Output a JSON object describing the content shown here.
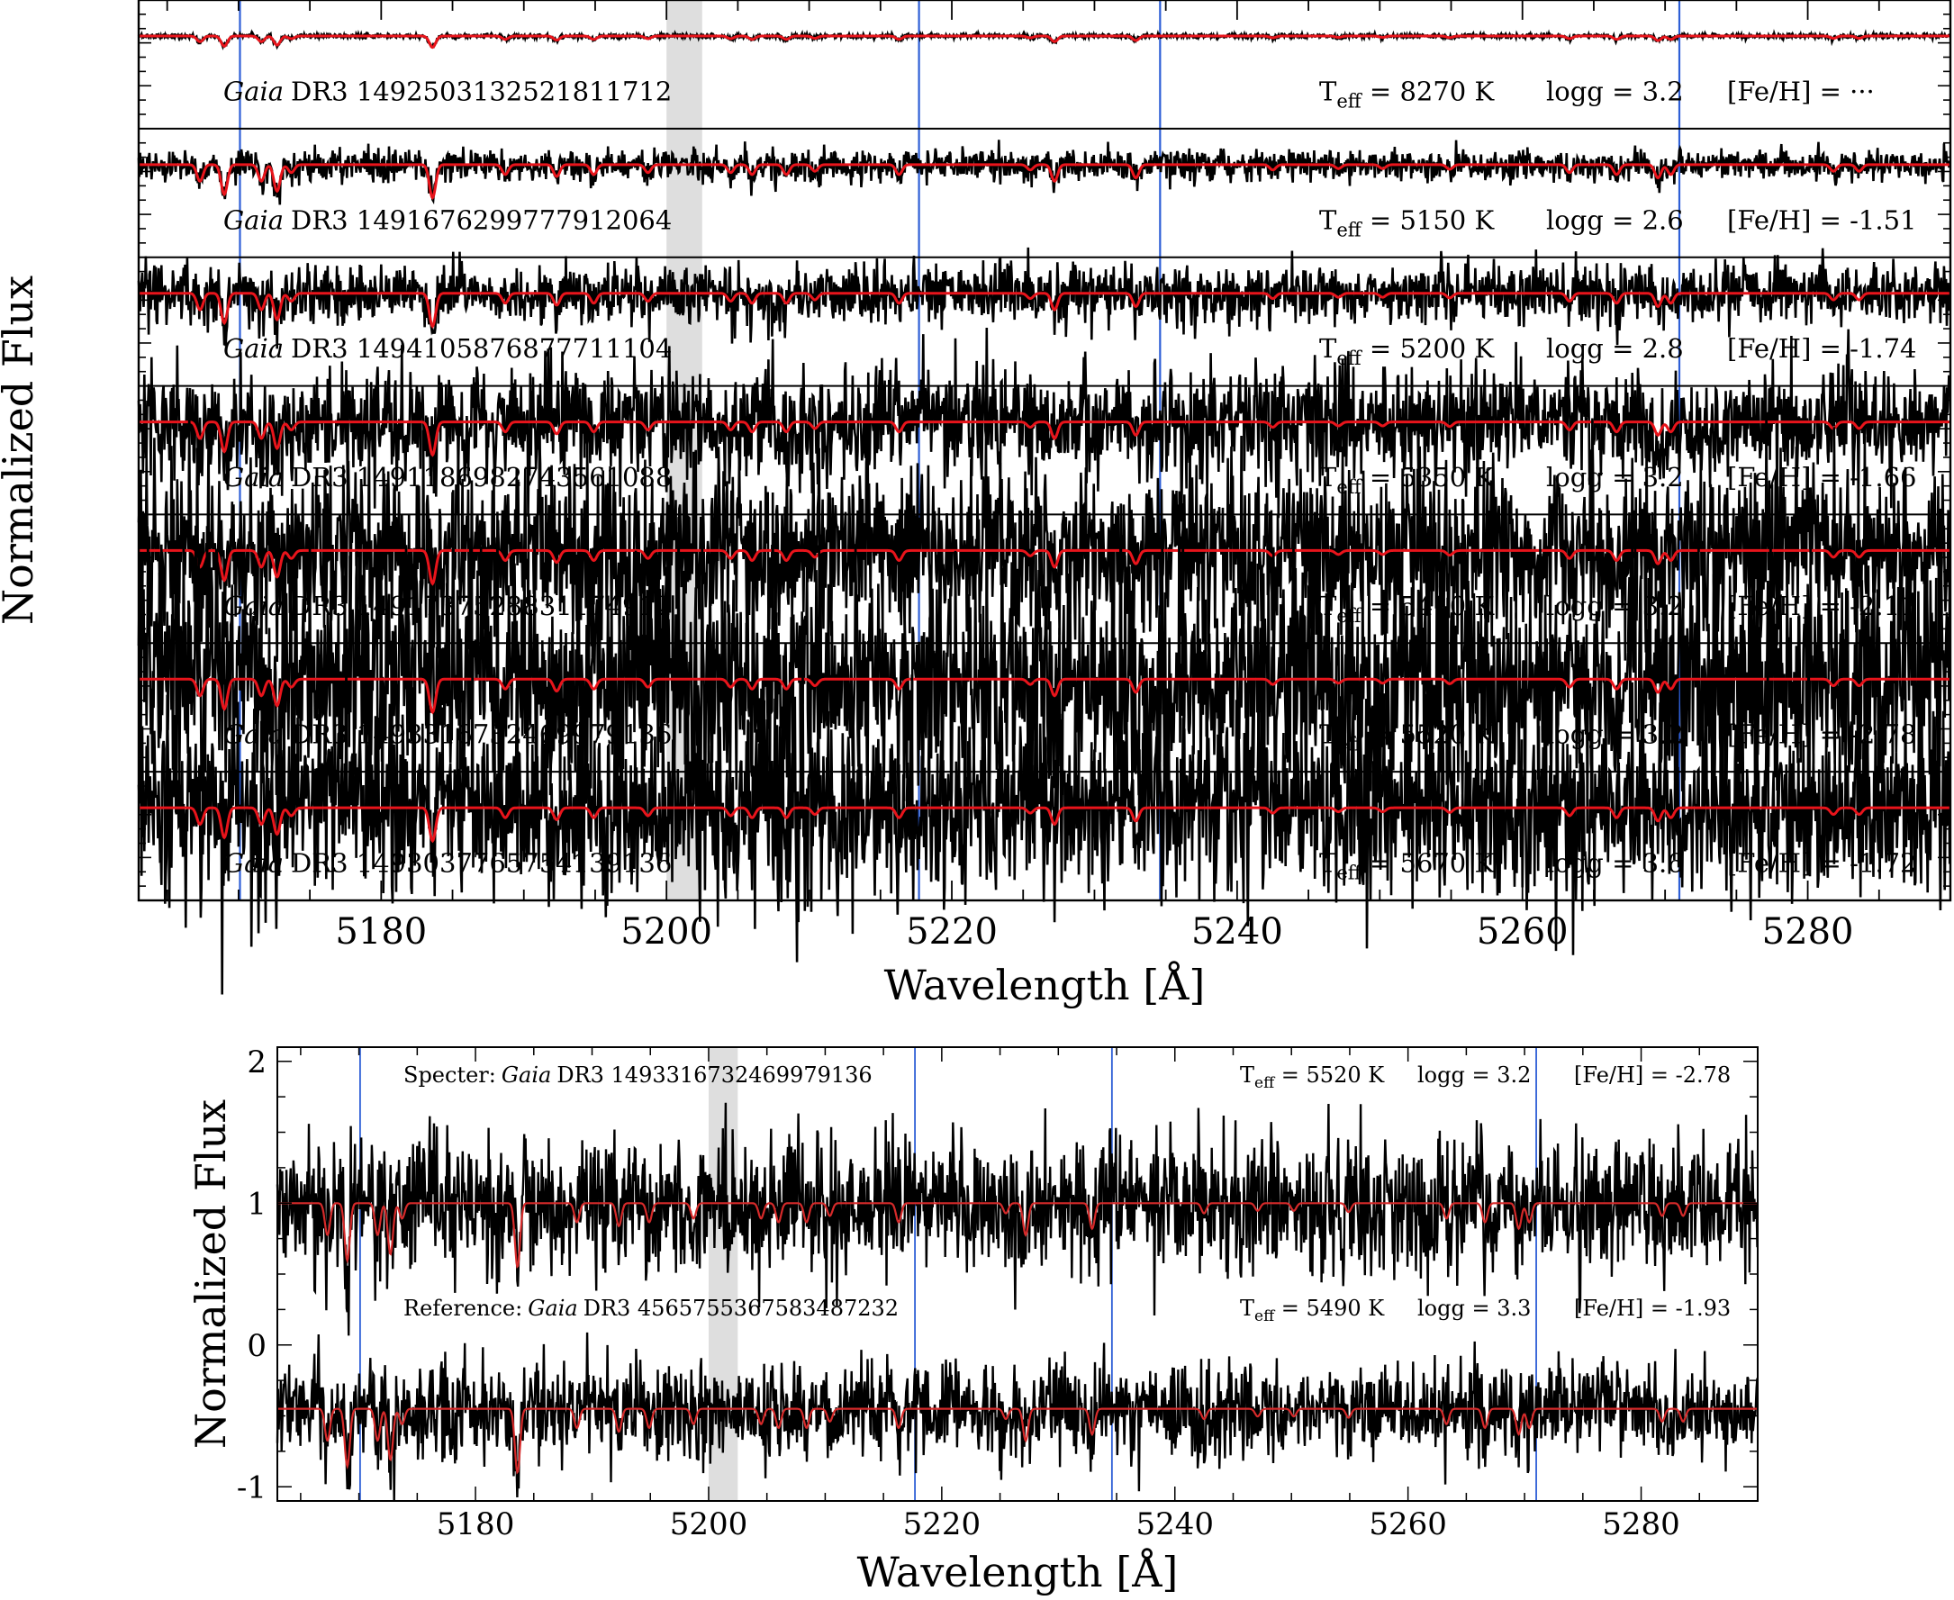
{
  "chart_data": [
    {
      "type": "line",
      "xlabel": "Wavelength [Å]",
      "ylabel": "Normalized Flux",
      "xlim": [
        5163,
        5290
      ],
      "x_ticks": [
        "5180",
        "5200",
        "5220",
        "5240",
        "5260",
        "5280"
      ],
      "grid": false,
      "shaded_region": [
        5200,
        5202.5
      ],
      "vertical_lines": [
        5170.1,
        5217.7,
        5234.6,
        5271.0
      ],
      "line_colors": {
        "observed": "#000000",
        "model": "#e8141b",
        "marker": "#2e5fd6",
        "shade": "#dedede"
      },
      "panels": [
        {
          "prefix": "Gaia",
          "star": "DR3 1492503132521811712",
          "teff": "T",
          "teff_sub": "eff",
          "teff_val": " = 8270 K",
          "logg": "logg = 3.2",
          "feh": "[Fe/H] = ···",
          "noise_level": 0.006
        },
        {
          "prefix": "Gaia",
          "star": "DR3 1491676299777912064",
          "teff": "T",
          "teff_sub": "eff",
          "teff_val": " = 5150 K",
          "logg": "logg = 2.6",
          "feh": "[Fe/H] = -1.51",
          "noise_level": 0.04
        },
        {
          "prefix": "Gaia",
          "star": "DR3 1494105876877711104",
          "teff": "T",
          "teff_sub": "eff",
          "teff_val": " = 5200 K",
          "logg": "logg = 2.8",
          "feh": "[Fe/H] = -1.74",
          "noise_level": 0.08
        },
        {
          "prefix": "Gaia",
          "star": "DR3 1491186982743561088",
          "teff": "T",
          "teff_sub": "eff",
          "teff_val": " = 5350 K",
          "logg": "logg = 3.2",
          "feh": "[Fe/H] = -1.66",
          "noise_level": 0.15
        },
        {
          "prefix": "Gaia",
          "star": "DR3 1491737528831174912",
          "teff": "T",
          "teff_sub": "eff",
          "teff_val": " = 5410 K",
          "logg": "logg = 3.2",
          "feh": "[Fe/H] = -2.11",
          "noise_level": 0.22
        },
        {
          "prefix": "Gaia",
          "star": "DR3 1493316732469979136",
          "teff": "T",
          "teff_sub": "eff",
          "teff_val": " = 5520 K",
          "logg": "logg = 3.2",
          "feh": "[Fe/H] = -2.78",
          "noise_level": 0.3
        },
        {
          "prefix": "Gaia",
          "star": "DR3 1493037765754139136",
          "teff": "T",
          "teff_sub": "eff",
          "teff_val": " = 5670 K",
          "logg": "logg = 3.6",
          "feh": "[Fe/H] = -1.72",
          "noise_level": 0.24
        }
      ]
    },
    {
      "type": "line",
      "xlabel": "Wavelength [Å]",
      "ylabel": "Normalized Flux",
      "xlim": [
        5163,
        5290
      ],
      "ylim": [
        -1.1,
        2.1
      ],
      "x_ticks": [
        "5180",
        "5200",
        "5220",
        "5240",
        "5260",
        "5280"
      ],
      "y_ticks": [
        "2",
        "1",
        "0",
        "-1"
      ],
      "grid": false,
      "shaded_region": [
        5200,
        5202.5
      ],
      "vertical_lines": [
        5170.1,
        5217.7,
        5234.6,
        5271.0
      ],
      "series": [
        {
          "role": "Specter:",
          "prefix": "Gaia",
          "star": "DR3 1493316732469979136",
          "teff": "T",
          "teff_sub": "eff",
          "teff_val": " = 5520 K",
          "logg": "logg = 3.2",
          "feh": "[Fe/H] = -2.78",
          "continuum": 1.0,
          "noise_level": 0.24
        },
        {
          "role": "Reference:",
          "prefix": "Gaia",
          "star": "DR3 4565755367583487232",
          "teff": "T",
          "teff_sub": "eff",
          "teff_val": " = 5490 K",
          "logg": "logg = 3.3",
          "feh": "[Fe/H] = -1.93",
          "continuum": -0.45,
          "noise_level": 0.17
        }
      ]
    }
  ]
}
